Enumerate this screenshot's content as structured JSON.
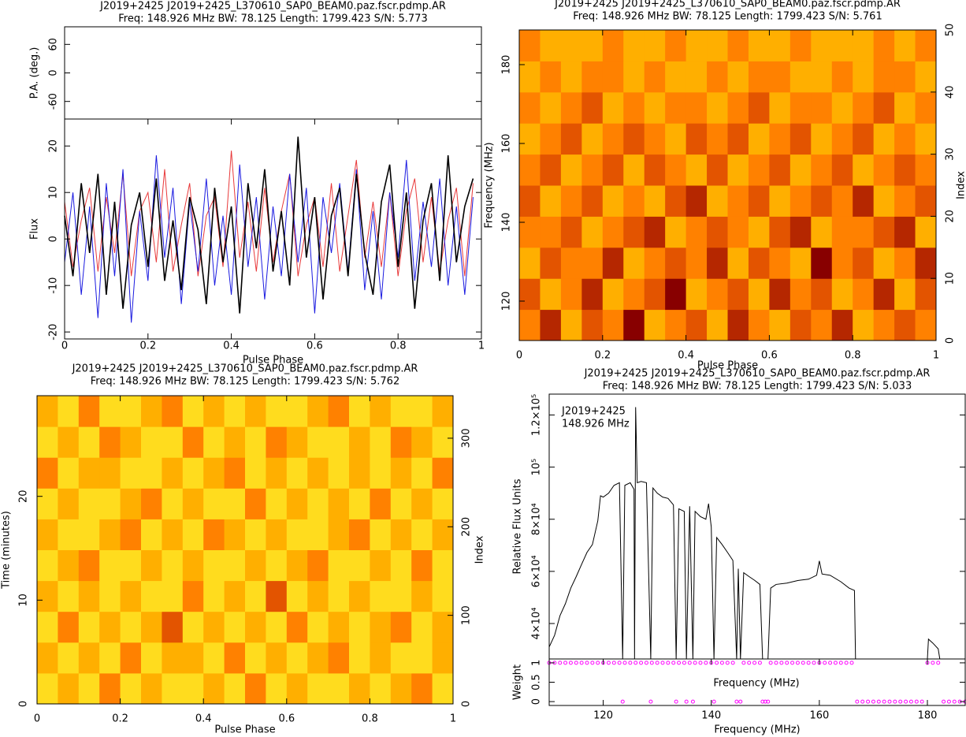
{
  "chart_data": [
    {
      "type": "line",
      "title": "J2019+2425  J2019+2425_L370610_SAP0_BEAM0.paz.fscr.pdmp.AR",
      "subtitle": "Freq: 148.926 MHz BW: 78.125 Length: 1799.423 S/N: 5.773",
      "ylabel": "P.A. (deg.)",
      "xlim": [
        0,
        1
      ],
      "ylim": [
        -97,
        97
      ],
      "yticks": [
        -60,
        0,
        60
      ],
      "x": [],
      "series": []
    },
    {
      "type": "line",
      "xlabel": "Pulse Phase",
      "ylabel": "Flux",
      "xlim": [
        0,
        1
      ],
      "xticks": [
        0,
        0.2,
        0.4,
        0.6,
        0.8,
        1
      ],
      "ylim": [
        -21.5,
        25.8
      ],
      "yticks": [
        -20,
        -10,
        0,
        10,
        20
      ],
      "x": [
        0,
        0.02,
        0.04,
        0.06,
        0.08,
        0.1,
        0.12,
        0.14,
        0.16,
        0.18,
        0.2,
        0.22,
        0.24,
        0.26,
        0.28,
        0.3,
        0.32,
        0.34,
        0.36,
        0.38,
        0.4,
        0.42,
        0.44,
        0.46,
        0.48,
        0.5,
        0.52,
        0.54,
        0.56,
        0.58,
        0.6,
        0.62,
        0.64,
        0.66,
        0.68,
        0.7,
        0.72,
        0.74,
        0.76,
        0.78,
        0.8,
        0.82,
        0.84,
        0.86,
        0.88,
        0.9,
        0.92,
        0.94,
        0.96,
        0.98
      ],
      "series": [
        {
          "color": "#e8393a",
          "values": [
            8,
            -6,
            4,
            11,
            -7,
            9,
            -3,
            14,
            -8,
            6,
            10,
            -5,
            15,
            -7,
            3,
            12,
            -8,
            5,
            9,
            -6,
            19,
            -4,
            8,
            -7,
            11,
            -5,
            6,
            14,
            -8,
            3,
            9,
            -6,
            12,
            -7,
            5,
            17,
            -4,
            8,
            -6,
            10,
            -8,
            6,
            13,
            -5,
            9,
            -7,
            4,
            11,
            -8,
            12
          ]
        },
        {
          "color": "#1a1ae0",
          "values": [
            -5,
            10,
            -12,
            7,
            -17,
            12,
            -8,
            15,
            -18,
            6,
            -9,
            18,
            -4,
            11,
            -14,
            8,
            -7,
            13,
            -10,
            5,
            -12,
            16,
            -6,
            9,
            -13,
            7,
            -8,
            14,
            -5,
            11,
            -16,
            9,
            -3,
            12,
            -7,
            15,
            -11,
            6,
            -13,
            10,
            -4,
            17,
            -9,
            8,
            -6,
            13,
            -10,
            7,
            -12,
            9
          ]
        },
        {
          "color": "#000000",
          "values": [
            5,
            -8,
            12,
            -3,
            14,
            -12,
            8,
            -15,
            3,
            10,
            -6,
            13,
            -9,
            4,
            -11,
            9,
            2,
            -14,
            11,
            -5,
            7,
            -16,
            12,
            -2,
            15,
            -7,
            6,
            -10,
            22,
            -4,
            9,
            -13,
            5,
            11,
            -8,
            14,
            -3,
            -12,
            8,
            16,
            -6,
            10,
            -15,
            4,
            12,
            -9,
            18,
            -5,
            7,
            13
          ]
        }
      ]
    },
    {
      "type": "heatmap",
      "title": "J2019+2425  J2019+2425_L370610_SAP0_BEAM0.paz.fscr.pdmp.AR",
      "subtitle": "Freq: 148.926 MHz BW: 78.125 Length: 1799.423 S/N: 5.761",
      "xlabel": "Pulse Phase",
      "ylabel": "Frequency (MHz)",
      "y2label": "Index",
      "xlim": [
        0,
        1
      ],
      "xticks": [
        0,
        0.2,
        0.4,
        0.6,
        0.8,
        1
      ],
      "ylim": [
        110,
        188.8
      ],
      "yticks": [
        120,
        140,
        160,
        180
      ],
      "y2lim": [
        0,
        50
      ],
      "y2ticks": [
        0,
        10,
        20,
        30,
        40,
        50
      ],
      "zlim": [
        0,
        9
      ],
      "z": [
        [
          6,
          4,
          7,
          5,
          6,
          3,
          7,
          6,
          5,
          7,
          4,
          6,
          7,
          5,
          6,
          4,
          7,
          6,
          5,
          6
        ],
        [
          5,
          7,
          6,
          4,
          7,
          6,
          5,
          3,
          7,
          6,
          5,
          7,
          4,
          6,
          5,
          7,
          6,
          4,
          7,
          5
        ],
        [
          7,
          5,
          6,
          6,
          4,
          7,
          6,
          5,
          6,
          4,
          7,
          5,
          6,
          7,
          3,
          6,
          5,
          7,
          6,
          4
        ],
        [
          6,
          6,
          5,
          7,
          6,
          5,
          4,
          7,
          6,
          5,
          6,
          7,
          5,
          4,
          7,
          6,
          6,
          5,
          4,
          7
        ],
        [
          5,
          7,
          6,
          5,
          7,
          6,
          7,
          5,
          4,
          7,
          6,
          5,
          7,
          6,
          5,
          6,
          4,
          7,
          6,
          5
        ],
        [
          6,
          5,
          7,
          6,
          5,
          7,
          5,
          6,
          7,
          5,
          7,
          6,
          5,
          7,
          6,
          5,
          7,
          6,
          5,
          6
        ],
        [
          7,
          6,
          5,
          7,
          6,
          5,
          6,
          7,
          5,
          6,
          5,
          7,
          6,
          5,
          7,
          6,
          5,
          7,
          6,
          7
        ],
        [
          6,
          7,
          6,
          5,
          7,
          6,
          7,
          6,
          6,
          7,
          6,
          5,
          7,
          6,
          6,
          7,
          6,
          5,
          7,
          6
        ],
        [
          7,
          6,
          7,
          6,
          6,
          7,
          6,
          7,
          7,
          6,
          7,
          6,
          6,
          7,
          7,
          6,
          7,
          6,
          6,
          7
        ],
        [
          6,
          7,
          7,
          7,
          6,
          7,
          7,
          6,
          7,
          7,
          6,
          7,
          7,
          6,
          7,
          7,
          7,
          6,
          7,
          6
        ]
      ]
    },
    {
      "type": "heatmap",
      "title": "J2019+2425  J2019+2425_L370610_SAP0_BEAM0.paz.fscr.pdmp.AR",
      "subtitle": "Freq: 148.926 MHz BW: 78.125 Length: 1799.423 S/N: 5.762",
      "xlabel": "Pulse Phase",
      "ylabel": "Time (minutes)",
      "y2label": "Index",
      "xlim": [
        0,
        1
      ],
      "xticks": [
        0,
        0.2,
        0.4,
        0.6,
        0.8,
        1
      ],
      "ylim": [
        0,
        29.7
      ],
      "yticks": [
        0,
        10,
        20
      ],
      "y2lim": [
        0,
        348
      ],
      "y2ticks": [
        0,
        100,
        200,
        300
      ],
      "zlim": [
        0,
        9
      ],
      "z": [
        [
          8,
          7,
          8,
          6,
          8,
          7,
          8,
          8,
          7,
          8,
          6,
          8,
          7,
          8,
          8,
          7,
          8,
          7,
          6,
          8
        ],
        [
          7,
          8,
          7,
          8,
          6,
          8,
          7,
          7,
          8,
          6,
          8,
          7,
          8,
          7,
          6,
          8,
          7,
          8,
          8,
          7
        ],
        [
          8,
          6,
          8,
          7,
          8,
          7,
          5,
          8,
          7,
          8,
          7,
          8,
          6,
          8,
          7,
          8,
          7,
          6,
          8,
          7
        ],
        [
          7,
          8,
          7,
          8,
          7,
          8,
          8,
          6,
          8,
          7,
          8,
          5,
          8,
          7,
          8,
          7,
          8,
          8,
          7,
          8
        ],
        [
          8,
          7,
          6,
          8,
          8,
          7,
          8,
          7,
          8,
          8,
          7,
          8,
          7,
          6,
          8,
          8,
          7,
          8,
          6,
          8
        ],
        [
          7,
          8,
          8,
          7,
          6,
          8,
          7,
          8,
          6,
          7,
          8,
          7,
          8,
          8,
          7,
          6,
          8,
          7,
          8,
          7
        ],
        [
          8,
          7,
          8,
          8,
          7,
          6,
          8,
          7,
          8,
          8,
          6,
          8,
          7,
          8,
          7,
          8,
          6,
          8,
          7,
          8
        ],
        [
          6,
          8,
          7,
          7,
          8,
          8,
          7,
          8,
          7,
          6,
          8,
          7,
          8,
          7,
          8,
          7,
          8,
          7,
          8,
          6
        ],
        [
          8,
          7,
          8,
          6,
          7,
          8,
          8,
          6,
          8,
          7,
          8,
          6,
          7,
          8,
          8,
          7,
          8,
          6,
          7,
          8
        ],
        [
          7,
          8,
          6,
          8,
          8,
          7,
          6,
          8,
          7,
          8,
          7,
          8,
          8,
          7,
          6,
          8,
          7,
          8,
          8,
          7
        ]
      ]
    },
    {
      "type": "line",
      "title": "J2019+2425  J2019+2425_L370610_SAP0_BEAM0.paz.fscr.pdmp.AR",
      "subtitle": "Freq: 148.926 MHz BW: 78.125 Length: 1799.423 S/N: 5.033",
      "ylabel": "Relative Flux Units",
      "annotations": [
        "J2019+2425",
        "148.926 MHz"
      ],
      "xlim": [
        110,
        187
      ],
      "ylim": [
        26400,
        128000
      ],
      "yticks": [
        {
          "value": 40000,
          "label": "4×10⁴"
        },
        {
          "value": 60000,
          "label": "6×10⁴"
        },
        {
          "value": 80000,
          "label": "8×10⁴"
        },
        {
          "value": 100000,
          "label": "10⁵"
        },
        {
          "value": 120000,
          "label": "1.2×10⁵"
        }
      ],
      "x": [
        110,
        111,
        112,
        113,
        114,
        115,
        116,
        117,
        118,
        119,
        119.5,
        120,
        121,
        122,
        123,
        123.6,
        124,
        125,
        125.7,
        125.8,
        126,
        126.3,
        127,
        128,
        128.8,
        129.2,
        130,
        131,
        132,
        133,
        133.5,
        134,
        135,
        135.4,
        136,
        136.6,
        137,
        138,
        139,
        139.5,
        140,
        140.5,
        141,
        142,
        143,
        144,
        144.7,
        145,
        145.4,
        146,
        147,
        148,
        149,
        149.5,
        150.5,
        151,
        152,
        154,
        156,
        158,
        159.5,
        160,
        160.5,
        162,
        164,
        165.5,
        166.5,
        166.7,
        null,
        180,
        180.2,
        181,
        182,
        182.3
      ],
      "series": [
        {
          "color": "#000000",
          "values": [
            31000,
            35500,
            43000,
            47600,
            53600,
            58000,
            62700,
            67300,
            70300,
            79400,
            89000,
            88500,
            90000,
            93000,
            94000,
            26400,
            93000,
            94000,
            91500,
            26400,
            123000,
            94000,
            94500,
            94000,
            26400,
            92000,
            90000,
            88500,
            88000,
            85500,
            26400,
            84000,
            83000,
            26400,
            85000,
            26400,
            83000,
            81000,
            80000,
            86000,
            77000,
            26400,
            73000,
            70300,
            67300,
            64200,
            26400,
            61000,
            26400,
            59500,
            58000,
            56600,
            55000,
            26400,
            26400,
            53600,
            55000,
            55500,
            56500,
            57000,
            58500,
            64000,
            59000,
            58500,
            56000,
            53600,
            52700,
            26400,
            null,
            26400,
            34000,
            32500,
            30300,
            26400
          ]
        }
      ]
    },
    {
      "type": "scatter",
      "xlabel": "Frequency (MHz)",
      "ylabel": "Weight",
      "annotations": [
        "Frequency (MHz)"
      ],
      "xlim": [
        110,
        187
      ],
      "xticks": [
        120,
        140,
        160,
        180
      ],
      "ylim": [
        -0.1,
        1.1
      ],
      "yticks": [
        0,
        0.5,
        1
      ],
      "x": [
        110,
        111,
        112,
        113,
        114,
        115,
        116,
        117,
        118,
        119,
        120,
        121,
        122,
        123,
        123.6,
        124,
        125,
        126,
        127,
        128,
        128.8,
        129,
        130,
        131,
        132,
        133,
        133.5,
        134,
        135,
        135.4,
        136,
        136.6,
        137,
        138,
        139,
        140,
        140.5,
        141,
        142,
        143,
        144,
        144.7,
        145.4,
        146,
        147,
        148,
        149,
        149.5,
        150,
        150.5,
        151,
        152,
        153,
        154,
        155,
        156,
        157,
        158,
        159,
        160,
        161,
        162,
        163,
        164,
        165,
        166,
        167,
        168,
        169,
        170,
        171,
        172,
        173,
        174,
        175,
        176,
        177,
        178,
        179,
        180,
        181,
        182,
        183,
        184,
        185,
        186,
        187
      ],
      "series": [
        {
          "color": "#ff00ff",
          "values": [
            1,
            1,
            1,
            1,
            1,
            1,
            1,
            1,
            1,
            1,
            1,
            1,
            1,
            1,
            0,
            1,
            1,
            1,
            1,
            1,
            0,
            1,
            1,
            1,
            1,
            1,
            0,
            1,
            1,
            0,
            1,
            0,
            1,
            1,
            1,
            1,
            0,
            1,
            1,
            1,
            1,
            0,
            0,
            1,
            1,
            1,
            1,
            0,
            0,
            0,
            1,
            1,
            1,
            1,
            1,
            1,
            1,
            1,
            1,
            1,
            1,
            1,
            1,
            1,
            1,
            1,
            0,
            0,
            0,
            0,
            0,
            0,
            0,
            0,
            0,
            0,
            0,
            0,
            0,
            1,
            1,
            1,
            0,
            0,
            0,
            0,
            0
          ]
        }
      ]
    }
  ]
}
